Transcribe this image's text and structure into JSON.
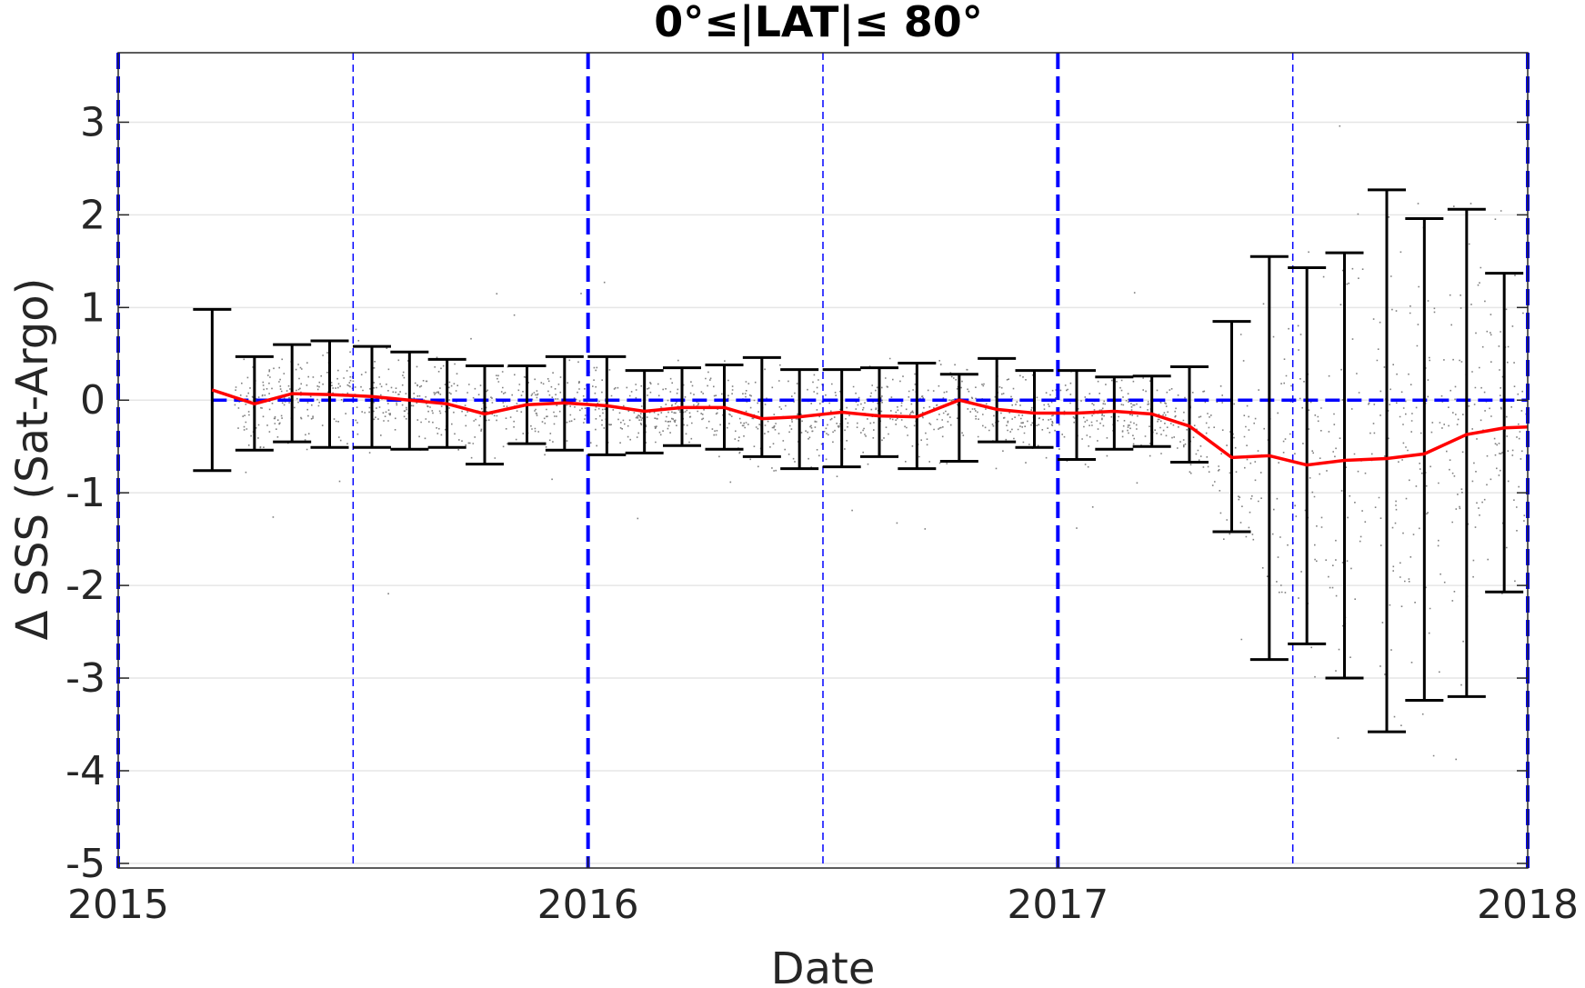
{
  "chart_data": {
    "type": "scatter",
    "title": "0°≤|LAT|≤ 80°",
    "xlabel": "Date",
    "ylabel": "Δ SSS (Sat-Argo)",
    "xlim": [
      2015.0,
      2018.0
    ],
    "ylim": [
      -5.05,
      3.75
    ],
    "x_ticks": [
      2015,
      2016,
      2017,
      2018
    ],
    "x_tick_labels": [
      "2015",
      "2016",
      "2017",
      "2018"
    ],
    "y_ticks": [
      -5,
      -4,
      -3,
      -2,
      -1,
      0,
      1,
      2,
      3
    ],
    "y_tick_labels": [
      "-5",
      "-4",
      "-3",
      "-2",
      "-1",
      "0",
      "1",
      "2",
      "3"
    ],
    "grid": "horizontal",
    "reference_lines": {
      "year_lines_x": [
        2015.0,
        2016.0,
        2017.0,
        2018.0
      ],
      "half_year_lines_x": [
        2015.5,
        2016.5,
        2017.5
      ],
      "zero_line_y": 0
    },
    "colors": {
      "scatter": "#808080",
      "mean_line": "#ff0000",
      "error_bars": "#000000",
      "reference": "#0000ff",
      "grid": "#e6e6e6"
    },
    "series": [
      {
        "type": "errorbar",
        "x": [
          2015.2,
          2015.29,
          2015.37,
          2015.45,
          2015.54,
          2015.62,
          2015.7,
          2015.78,
          2015.87,
          2015.95,
          2016.04,
          2016.12,
          2016.2,
          2016.29,
          2016.37,
          2016.45,
          2016.54,
          2016.62,
          2016.7,
          2016.79,
          2016.87,
          2016.95,
          2017.04,
          2017.12,
          2017.2,
          2017.28,
          2017.37,
          2017.45,
          2017.53,
          2017.61,
          2017.7,
          2017.78,
          2017.87,
          2017.95
        ],
        "y": [
          0.11,
          -0.04,
          0.07,
          0.06,
          0.04,
          0.0,
          -0.04,
          -0.15,
          -0.05,
          -0.03,
          -0.06,
          -0.12,
          -0.08,
          -0.08,
          -0.2,
          -0.18,
          -0.13,
          -0.17,
          -0.18,
          0.0,
          -0.1,
          -0.14,
          -0.14,
          -0.12,
          -0.15,
          -0.28,
          -0.62,
          -0.6,
          -0.7,
          -0.65,
          -0.63,
          -0.58,
          -0.37,
          -0.3
        ],
        "upper": [
          0.98,
          0.47,
          0.6,
          0.64,
          0.58,
          0.52,
          0.44,
          0.37,
          0.37,
          0.47,
          0.47,
          0.32,
          0.35,
          0.38,
          0.46,
          0.33,
          0.33,
          0.35,
          0.4,
          0.28,
          0.45,
          0.32,
          0.32,
          0.25,
          0.26,
          0.36,
          0.85,
          1.55,
          1.43,
          1.59,
          2.27,
          1.96,
          2.06,
          1.37
        ],
        "lower": [
          -0.76,
          -0.54,
          -0.45,
          -0.51,
          -0.51,
          -0.53,
          -0.51,
          -0.69,
          -0.47,
          -0.54,
          -0.59,
          -0.57,
          -0.49,
          -0.53,
          -0.61,
          -0.74,
          -0.72,
          -0.61,
          -0.74,
          -0.66,
          -0.45,
          -0.51,
          -0.64,
          -0.53,
          -0.5,
          -0.67,
          -1.42,
          -2.8,
          -2.63,
          -3.0,
          -3.58,
          -3.24,
          -3.2,
          -2.07
        ]
      },
      {
        "type": "line",
        "x": [
          2015.2,
          2015.29,
          2015.37,
          2015.45,
          2015.54,
          2015.62,
          2015.7,
          2015.78,
          2015.87,
          2015.95,
          2016.04,
          2016.12,
          2016.2,
          2016.29,
          2016.37,
          2016.45,
          2016.54,
          2016.62,
          2016.7,
          2016.79,
          2016.87,
          2016.95,
          2017.04,
          2017.12,
          2017.2,
          2017.28,
          2017.37,
          2017.45,
          2017.53,
          2017.61,
          2017.7,
          2017.78,
          2017.87,
          2017.95,
          2018.0
        ],
        "y": [
          0.11,
          -0.04,
          0.07,
          0.06,
          0.04,
          0.0,
          -0.04,
          -0.15,
          -0.05,
          -0.03,
          -0.06,
          -0.12,
          -0.08,
          -0.08,
          -0.2,
          -0.18,
          -0.13,
          -0.17,
          -0.18,
          0.0,
          -0.1,
          -0.14,
          -0.14,
          -0.12,
          -0.15,
          -0.28,
          -0.62,
          -0.6,
          -0.7,
          -0.65,
          -0.63,
          -0.58,
          -0.37,
          -0.3,
          -0.29
        ]
      },
      {
        "type": "scatter",
        "x_range": [
          2015.24,
          2018.0
        ],
        "sample_points": 12000
      }
    ]
  }
}
